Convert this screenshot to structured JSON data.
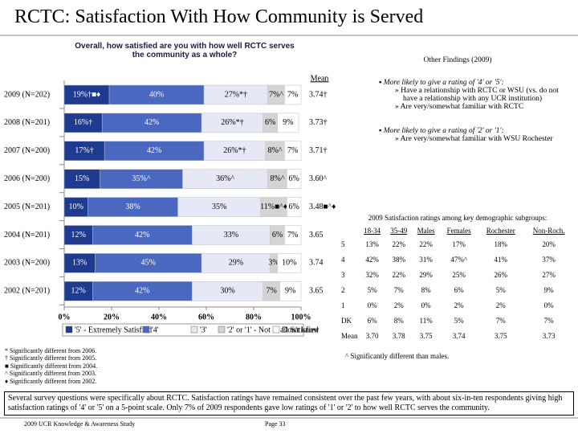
{
  "header": {
    "title": "RCTC:  Satisfaction With How Community is Served"
  },
  "chart_data": {
    "type": "stacked-bar-horizontal",
    "title": "Overall, how satisfied are you with how well RCTC serves the community as a whole?",
    "mean_title": "Mean",
    "categories": [
      "2009 (N=202)",
      "2008 (N=201)",
      "2007 (N=200)",
      "2006 (N=200)",
      "2005 (N=201)",
      "2004 (N=201)",
      "2003 (N=200)",
      "2002 (N=201)"
    ],
    "mean_labels": [
      "3.74†",
      "3.73†",
      "3.71†",
      "3.60^",
      "3.48■^♦",
      "3.65",
      "3.74",
      "3.65"
    ],
    "series": [
      {
        "name": "'5' - Extremely Satisfied",
        "color": "#1f3b8f",
        "values": [
          19,
          16,
          17,
          15,
          10,
          12,
          13,
          12
        ],
        "value_labels": [
          "19%†■♦",
          "16%†",
          "17%†",
          "15%",
          "10%",
          "12%",
          "13%",
          "12%"
        ]
      },
      {
        "name": "'4'",
        "color": "#4a68c0",
        "values": [
          40,
          42,
          42,
          35,
          38,
          42,
          45,
          42
        ],
        "value_labels": [
          "40%",
          "42%",
          "42%",
          "35%^",
          "38%",
          "42%",
          "45%",
          "42%"
        ]
      },
      {
        "name": "'3'",
        "color": "#e6e8f5",
        "values": [
          27,
          26,
          26,
          36,
          35,
          33,
          29,
          30
        ],
        "value_labels": [
          "27%*†",
          "26%*†",
          "26%*†",
          "36%^",
          "35%",
          "33%",
          "29%",
          "30%"
        ]
      },
      {
        "name": "'2' or '1' - Not at all Satisfied",
        "color": "#d4d4d4",
        "values": [
          7,
          6,
          8,
          8,
          11,
          6,
          3,
          7
        ],
        "value_labels": [
          "7%^",
          "6%",
          "8%^",
          "8%^",
          "11%■^♦",
          "6%",
          "3%",
          "7%"
        ]
      },
      {
        "name": "Don't know",
        "color": "#ffffff",
        "values": [
          7,
          9,
          7,
          6,
          6,
          7,
          10,
          9
        ],
        "value_labels": [
          "7%",
          "9%",
          "7%",
          "6%",
          "6%",
          "7%",
          "10%",
          "9%"
        ]
      }
    ],
    "xlim": [
      0,
      100
    ],
    "xticks": [
      {
        "value": 0,
        "label": "0%"
      },
      {
        "value": 20,
        "label": "20%"
      },
      {
        "value": 40,
        "label": "40%"
      },
      {
        "value": 60,
        "label": "60%"
      },
      {
        "value": 80,
        "label": "80%"
      },
      {
        "value": 100,
        "label": "100%"
      }
    ],
    "footnotes": [
      "* Significantly different from 2006.",
      "† Significantly different from 2005.",
      "■ Significantly different from 2004.",
      "^ Significantly different from 2003.",
      "♦ Significantly different from 2002."
    ]
  },
  "findings": {
    "title": "Other Findings (2009)",
    "items": [
      {
        "text": "More likely to give a rating of '4' or '5':",
        "subs": [
          "Have a relationship with RCTC or WSU (vs. do not have a relationship with any UCR institution)",
          "Are very/somewhat familiar with RCTC"
        ]
      },
      {
        "text": "More likely to give a rating of '2' or '1':",
        "subs": [
          "Are very/somewhat familiar with WSU Rochester"
        ]
      }
    ]
  },
  "table": {
    "title": "2009 Satisfaction ratings among key demographic subgroups:",
    "columns": [
      "18-34",
      "35-49",
      "Males",
      "Females",
      "Rochester",
      "Non-Roch."
    ],
    "rows": [
      {
        "label": "5",
        "cells": [
          "13%",
          "22%",
          "22%",
          "17%",
          "18%",
          "20%"
        ]
      },
      {
        "label": "4",
        "cells": [
          "42%",
          "38%",
          "31%",
          "47%^",
          "41%",
          "37%"
        ]
      },
      {
        "label": "3",
        "cells": [
          "32%",
          "22%",
          "29%",
          "25%",
          "26%",
          "27%"
        ]
      },
      {
        "label": "2",
        "cells": [
          "5%",
          "7%",
          "8%",
          "6%",
          "5%",
          "9%"
        ]
      },
      {
        "label": "1",
        "cells": [
          "0%",
          "2%",
          "0%",
          "2%",
          "2%",
          "0%"
        ]
      },
      {
        "label": "DK",
        "cells": [
          "6%",
          "8%",
          "11%",
          "5%",
          "7%",
          "7%"
        ]
      },
      {
        "label": "Mean",
        "cells": [
          "3.70",
          "3.78",
          "3.75",
          "3.74",
          "3.75",
          "3.73"
        ]
      }
    ],
    "note": "^ Significantly different than males."
  },
  "summary": "Several survey questions were specifically about RCTC.  Satisfaction ratings have remained consistent over the past few years, with about six-in-ten respondents giving high satisfaction ratings of '4' or '5' on a 5-point scale.  Only 7% of 2009 respondents gave low ratings of '1' or '2' to how well RCTC serves the community.",
  "footer": {
    "left": "2009 UCR Knowledge & Awareness Study",
    "right": "Page 33"
  }
}
